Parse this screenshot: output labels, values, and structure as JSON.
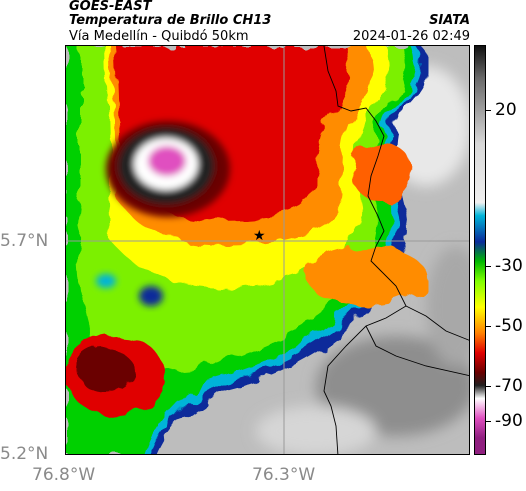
{
  "header": {
    "satellite": "GOES-EAST",
    "product": "Temperatura de Brillo CH13",
    "route": "Vía Medellín - Quibdó 50km",
    "source": "SIATA",
    "timestamp": "2024-01-26 02:49"
  },
  "axes": {
    "lat_ticks": [
      "5.7°N",
      "5.2°N"
    ],
    "lon_ticks": [
      "76.8°W",
      "76.3°W"
    ]
  },
  "colorbar": {
    "ticks": [
      "20",
      "-30",
      "-50",
      "-70",
      "-90"
    ],
    "stops": [
      {
        "v": 30,
        "color": "#111111"
      },
      {
        "v": 20,
        "color": "#6b6b6b"
      },
      {
        "v": 0,
        "color": "#d8d8d8"
      },
      {
        "v": -18,
        "color": "#f0f0f0"
      },
      {
        "v": -22,
        "color": "#00b4d8"
      },
      {
        "v": -30,
        "color": "#0a2a9a"
      },
      {
        "v": -36,
        "color": "#00b800"
      },
      {
        "v": -42,
        "color": "#80ff00"
      },
      {
        "v": -50,
        "color": "#ffff00"
      },
      {
        "v": -58,
        "color": "#ff8000"
      },
      {
        "v": -64,
        "color": "#e00000"
      },
      {
        "v": -70,
        "color": "#6a0000"
      },
      {
        "v": -74,
        "color": "#202020"
      },
      {
        "v": -78,
        "color": "#ffffff"
      },
      {
        "v": -84,
        "color": "#e050c0"
      },
      {
        "v": -90,
        "color": "#902080"
      }
    ]
  },
  "marker": {
    "symbol": "★",
    "color": "#000000"
  },
  "colors": {
    "clear_sky": "#bdbdbd",
    "gridline": "#9a9a9a",
    "border": "#000000"
  }
}
